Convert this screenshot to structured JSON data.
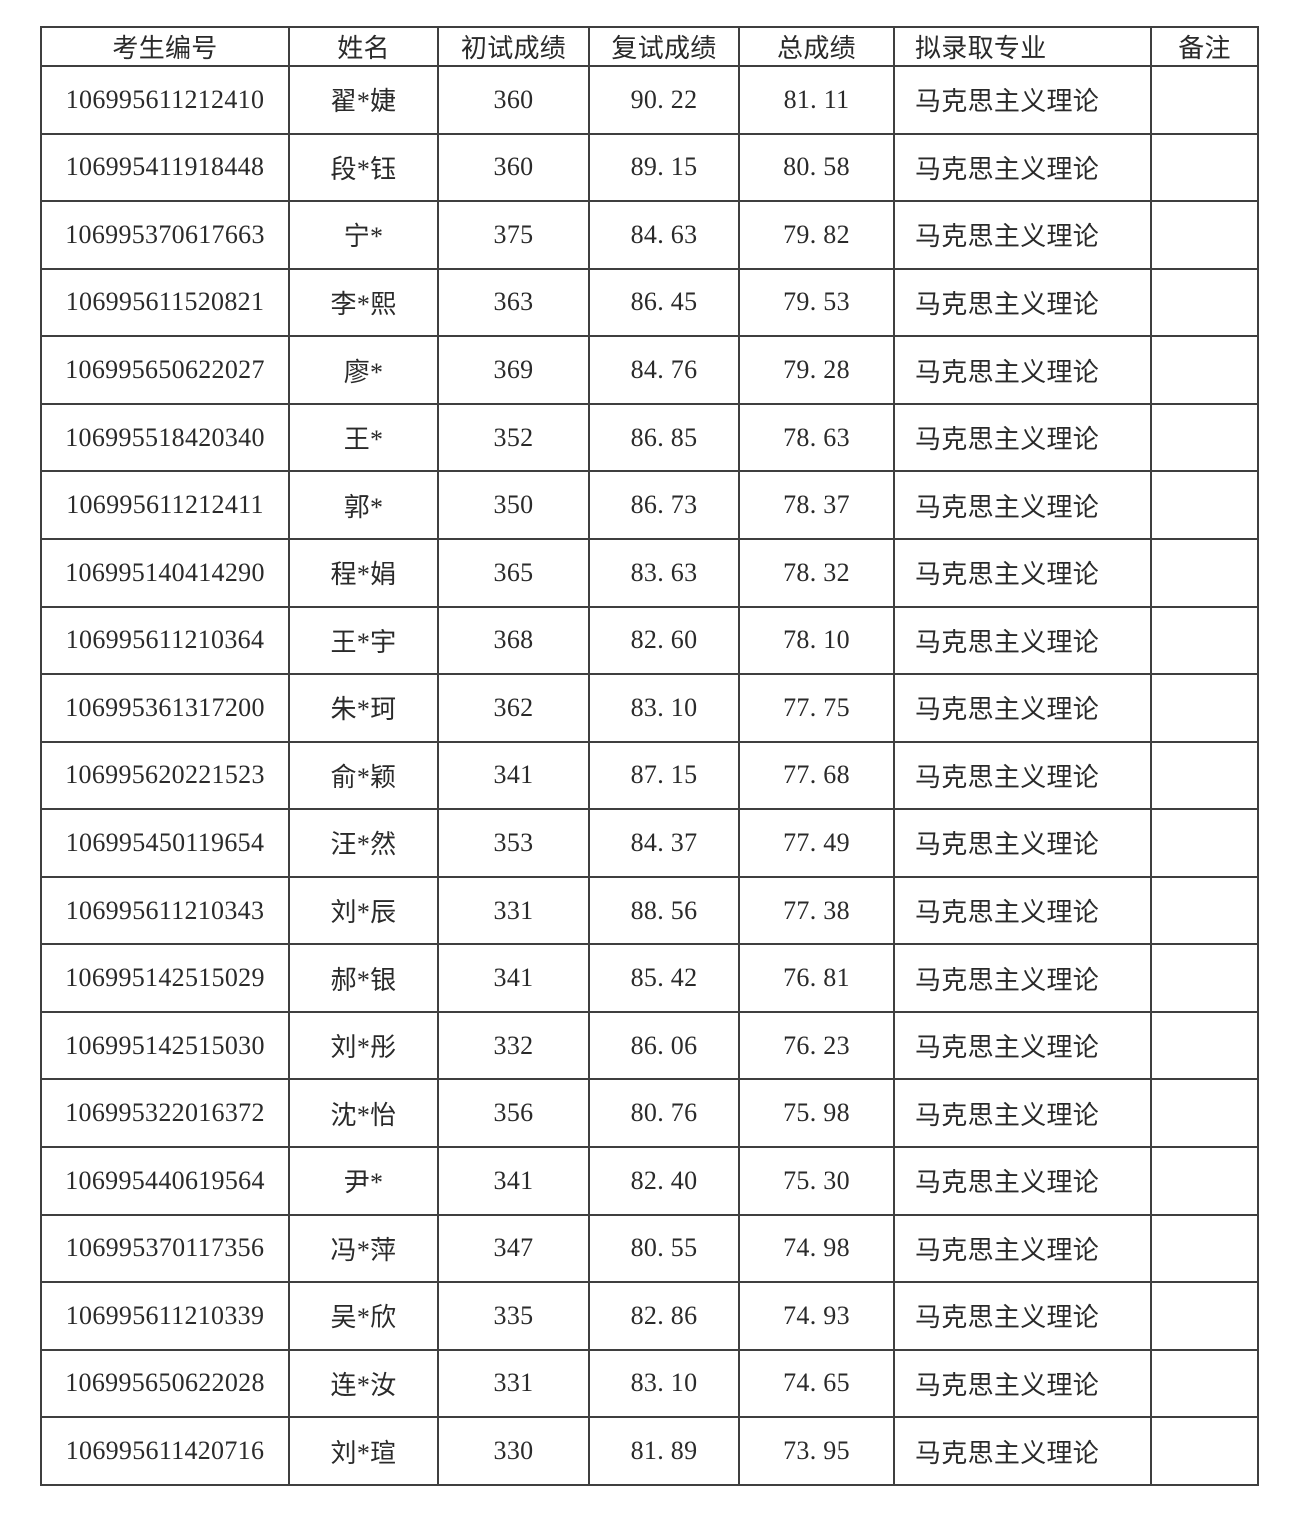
{
  "colors": {
    "border": "#3f3f3f",
    "text": "#2a2a2a",
    "background": "#ffffff"
  },
  "table": {
    "headers": {
      "exam_id": "考生编号",
      "name": "姓名",
      "initial_score": "初试成绩",
      "retest_score": "复试成绩",
      "total_score": "总成绩",
      "major": "拟录取专业",
      "remark": "备注"
    },
    "rows": [
      {
        "id": "106995611212410",
        "name": "翟*婕",
        "initial": "360",
        "retest": "90. 22",
        "total": "81. 11",
        "major": "马克思主义理论",
        "remark": ""
      },
      {
        "id": "106995411918448",
        "name": "段*钰",
        "initial": "360",
        "retest": "89. 15",
        "total": "80. 58",
        "major": "马克思主义理论",
        "remark": ""
      },
      {
        "id": "106995370617663",
        "name": "宁*",
        "initial": "375",
        "retest": "84. 63",
        "total": "79. 82",
        "major": "马克思主义理论",
        "remark": ""
      },
      {
        "id": "106995611520821",
        "name": "李*熙",
        "initial": "363",
        "retest": "86. 45",
        "total": "79. 53",
        "major": "马克思主义理论",
        "remark": ""
      },
      {
        "id": "106995650622027",
        "name": "廖*",
        "initial": "369",
        "retest": "84. 76",
        "total": "79. 28",
        "major": "马克思主义理论",
        "remark": ""
      },
      {
        "id": "106995518420340",
        "name": "王*",
        "initial": "352",
        "retest": "86. 85",
        "total": "78. 63",
        "major": "马克思主义理论",
        "remark": ""
      },
      {
        "id": "106995611212411",
        "name": "郭*",
        "initial": "350",
        "retest": "86. 73",
        "total": "78. 37",
        "major": "马克思主义理论",
        "remark": ""
      },
      {
        "id": "106995140414290",
        "name": "程*娟",
        "initial": "365",
        "retest": "83. 63",
        "total": "78. 32",
        "major": "马克思主义理论",
        "remark": ""
      },
      {
        "id": "106995611210364",
        "name": "王*宇",
        "initial": "368",
        "retest": "82. 60",
        "total": "78. 10",
        "major": "马克思主义理论",
        "remark": ""
      },
      {
        "id": "106995361317200",
        "name": "朱*珂",
        "initial": "362",
        "retest": "83. 10",
        "total": "77. 75",
        "major": "马克思主义理论",
        "remark": ""
      },
      {
        "id": "106995620221523",
        "name": "俞*颖",
        "initial": "341",
        "retest": "87. 15",
        "total": "77. 68",
        "major": "马克思主义理论",
        "remark": ""
      },
      {
        "id": "106995450119654",
        "name": "汪*然",
        "initial": "353",
        "retest": "84. 37",
        "total": "77. 49",
        "major": "马克思主义理论",
        "remark": ""
      },
      {
        "id": "106995611210343",
        "name": "刘*辰",
        "initial": "331",
        "retest": "88. 56",
        "total": "77. 38",
        "major": "马克思主义理论",
        "remark": ""
      },
      {
        "id": "106995142515029",
        "name": "郝*银",
        "initial": "341",
        "retest": "85. 42",
        "total": "76. 81",
        "major": "马克思主义理论",
        "remark": ""
      },
      {
        "id": "106995142515030",
        "name": "刘*彤",
        "initial": "332",
        "retest": "86. 06",
        "total": "76. 23",
        "major": "马克思主义理论",
        "remark": ""
      },
      {
        "id": "106995322016372",
        "name": "沈*怡",
        "initial": "356",
        "retest": "80. 76",
        "total": "75. 98",
        "major": "马克思主义理论",
        "remark": ""
      },
      {
        "id": "106995440619564",
        "name": "尹*",
        "initial": "341",
        "retest": "82. 40",
        "total": "75. 30",
        "major": "马克思主义理论",
        "remark": ""
      },
      {
        "id": "106995370117356",
        "name": "冯*萍",
        "initial": "347",
        "retest": "80. 55",
        "total": "74. 98",
        "major": "马克思主义理论",
        "remark": ""
      },
      {
        "id": "106995611210339",
        "name": "吴*欣",
        "initial": "335",
        "retest": "82. 86",
        "total": "74. 93",
        "major": "马克思主义理论",
        "remark": ""
      },
      {
        "id": "106995650622028",
        "name": "连*汝",
        "initial": "331",
        "retest": "83. 10",
        "total": "74. 65",
        "major": "马克思主义理论",
        "remark": ""
      },
      {
        "id": "106995611420716",
        "name": "刘*瑄",
        "initial": "330",
        "retest": "81. 89",
        "total": "73. 95",
        "major": "马克思主义理论",
        "remark": ""
      }
    ]
  }
}
